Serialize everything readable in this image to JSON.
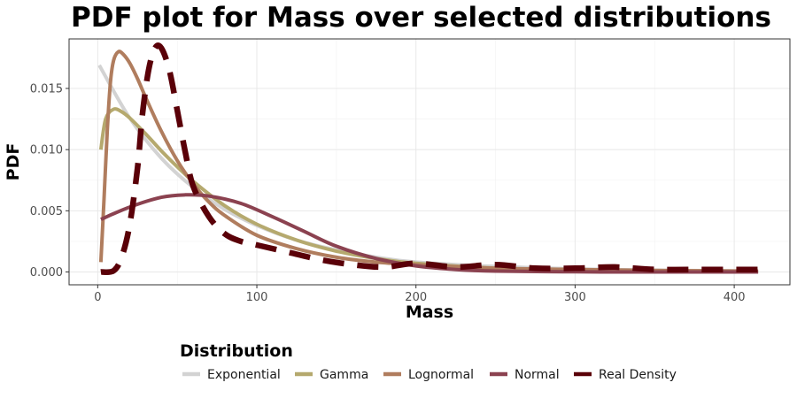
{
  "chart_data": {
    "type": "line",
    "title": "PDF plot for Mass over selected distributions",
    "xlabel": "Mass",
    "ylabel": "PDF",
    "xlim": [
      -18,
      435
    ],
    "ylim": [
      -0.00105,
      0.01905
    ],
    "x_ticks": [
      0,
      100,
      200,
      300,
      400
    ],
    "x_tick_labels": [
      "0",
      "100",
      "200",
      "300",
      "400"
    ],
    "y_ticks": [
      0,
      0.005,
      0.01,
      0.015
    ],
    "y_tick_labels": [
      "0.000",
      "0.005",
      "0.010",
      "0.015"
    ],
    "grid": true,
    "legend": {
      "title": "Distribution",
      "position": "bottom"
    },
    "series": [
      {
        "name": "Exponential",
        "color": "#d3d3d3",
        "dashed": false,
        "x": [
          1,
          20,
          40,
          60,
          80,
          100,
          125,
          150,
          175,
          200,
          250,
          300,
          350,
          415
        ],
        "y": [
          0.0169,
          0.0126,
          0.0093,
          0.0069,
          0.0051,
          0.0038,
          0.0026,
          0.0018,
          0.0012,
          0.0008,
          0.00045,
          0.00025,
          0.00014,
          7e-05
        ]
      },
      {
        "name": "Gamma",
        "color": "#b5a96e",
        "dashed": false,
        "x": [
          2,
          5,
          10,
          15,
          20,
          30,
          40,
          50,
          60,
          80,
          100,
          125,
          150,
          175,
          200,
          250,
          300,
          350,
          415
        ],
        "y": [
          0.01,
          0.0125,
          0.0133,
          0.0131,
          0.0126,
          0.0113,
          0.0099,
          0.0086,
          0.0074,
          0.0054,
          0.0039,
          0.0026,
          0.0017,
          0.0011,
          0.0007,
          0.0003,
          0.00013,
          6e-05,
          2e-05
        ]
      },
      {
        "name": "Lognormal",
        "color": "#b07d5e",
        "dashed": false,
        "x": [
          2,
          4,
          6,
          8,
          10,
          13,
          16,
          20,
          25,
          30,
          40,
          50,
          60,
          70,
          80,
          100,
          125,
          150,
          175,
          200,
          250,
          300,
          350,
          415
        ],
        "y": [
          0.0008,
          0.006,
          0.0115,
          0.0155,
          0.0173,
          0.018,
          0.0178,
          0.0171,
          0.0158,
          0.0143,
          0.0115,
          0.0091,
          0.0072,
          0.0057,
          0.0046,
          0.003,
          0.0019,
          0.0012,
          0.0008,
          0.0006,
          0.0003,
          0.0002,
          0.00012,
          6e-05
        ]
      },
      {
        "name": "Normal",
        "color": "#8b4250",
        "dashed": false,
        "x": [
          2,
          20,
          40,
          55,
          70,
          90,
          110,
          130,
          150,
          175,
          200,
          225,
          250,
          300,
          350,
          415
        ],
        "y": [
          0.0043,
          0.0053,
          0.0061,
          0.0063,
          0.0062,
          0.0056,
          0.0045,
          0.0033,
          0.0021,
          0.0011,
          0.0005,
          0.0002,
          7e-05,
          1e-05,
          0,
          0
        ]
      },
      {
        "name": "Real Density",
        "color": "#5a0008",
        "dashed": true,
        "x": [
          2,
          10,
          15,
          20,
          25,
          28,
          32,
          36,
          40,
          45,
          50,
          55,
          60,
          70,
          80,
          90,
          100,
          120,
          140,
          160,
          180,
          200,
          225,
          250,
          275,
          300,
          325,
          350,
          375,
          400,
          415
        ],
        "y": [
          0,
          0.0001,
          0.0012,
          0.0038,
          0.0085,
          0.0128,
          0.0165,
          0.0183,
          0.0183,
          0.0165,
          0.0132,
          0.0098,
          0.007,
          0.0045,
          0.0031,
          0.0025,
          0.0022,
          0.0016,
          0.001,
          0.0006,
          0.0004,
          0.0007,
          0.0004,
          0.0006,
          0.0003,
          0.0003,
          0.0004,
          0.0002,
          0.0002,
          0.0002,
          0.0002
        ]
      }
    ]
  }
}
